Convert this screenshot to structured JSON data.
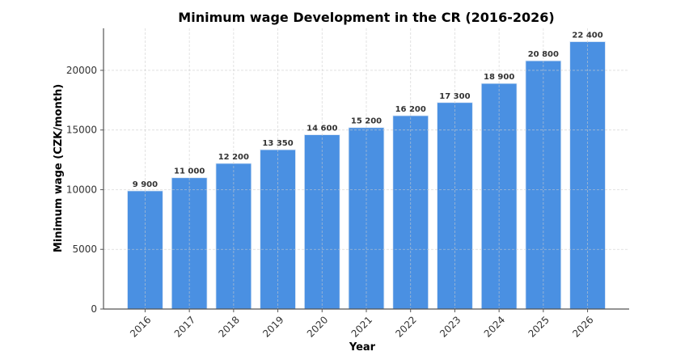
{
  "chart_data": {
    "type": "bar",
    "title": "Minimum wage Development in the CR (2016-2026)",
    "xlabel": "Year",
    "ylabel": "Minimum wage (CZK/month)",
    "categories": [
      "2016",
      "2017",
      "2018",
      "2019",
      "2020",
      "2021",
      "2022",
      "2023",
      "2024",
      "2025",
      "2026"
    ],
    "values": [
      9900,
      11000,
      12200,
      13350,
      14600,
      15200,
      16200,
      17300,
      18900,
      20800,
      22400
    ],
    "data_labels": [
      "9 900",
      "11 000",
      "12 200",
      "13 350",
      "14 600",
      "15 200",
      "16 200",
      "17 300",
      "18 900",
      "20 800",
      "22 400"
    ],
    "ylim": [
      0,
      23520
    ],
    "yticks": [
      0,
      5000,
      10000,
      15000,
      20000
    ],
    "grid": true,
    "bar_color": "#4a90e2"
  }
}
